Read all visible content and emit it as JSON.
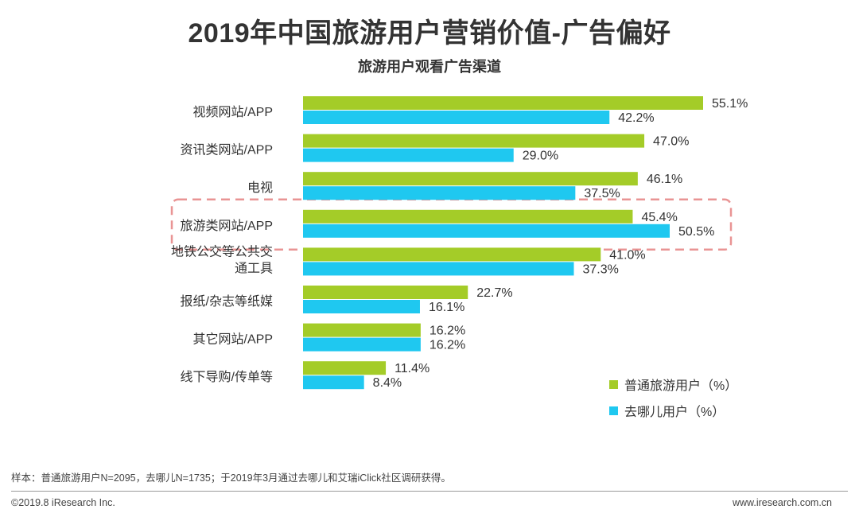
{
  "header": {
    "title": "2019年中国旅游用户营销价值-广告偏好",
    "subtitle": "旅游用户观看广告渠道"
  },
  "chart_data": {
    "type": "bar",
    "orientation": "horizontal",
    "title": "旅游用户观看广告渠道",
    "categories": [
      [
        "视频网站/APP"
      ],
      [
        "资讯类网站/APP"
      ],
      [
        "电视"
      ],
      [
        "旅游类网站/APP"
      ],
      [
        "地铁公交等公共交",
        "通工具"
      ],
      [
        "报纸/杂志等纸媒"
      ],
      [
        "其它网站/APP"
      ],
      [
        "线下导购/传单等"
      ]
    ],
    "series": [
      {
        "name": "普通旅游用户（%）",
        "color": "#a4cc28",
        "values": [
          55.1,
          47.0,
          46.1,
          45.4,
          41.0,
          22.7,
          16.2,
          11.4
        ]
      },
      {
        "name": "去哪儿用户（%）",
        "color": "#1fc8f0",
        "values": [
          42.2,
          29.0,
          37.5,
          50.5,
          37.3,
          16.1,
          16.2,
          8.4
        ]
      }
    ],
    "value_suffix": "%",
    "xlim": [
      0,
      60
    ],
    "highlighted_category_index": 3,
    "highlight_color": "#e99494",
    "legend_position": "bottom-right"
  },
  "legend": {
    "items": [
      {
        "label": "普通旅游用户（%）",
        "color": "#a4cc28"
      },
      {
        "label": "去哪儿用户（%）",
        "color": "#1fc8f0"
      }
    ]
  },
  "footer": {
    "note": "样本：普通旅游用户N=2095，去哪儿N=1735；于2019年3月通过去哪儿和艾瑞iClick社区调研获得。",
    "copyright": "©2019.8 iResearch Inc.",
    "website": "www.iresearch.com.cn"
  }
}
